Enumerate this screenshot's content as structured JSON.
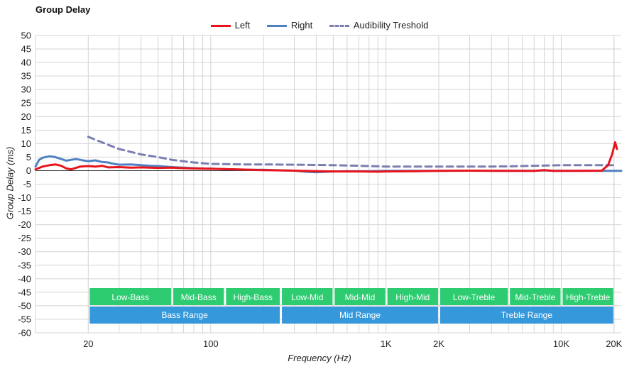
{
  "chart_data": {
    "type": "line",
    "title": "Group Delay",
    "xlabel": "Frequency (Hz)",
    "ylabel": "Group Delay (ms)",
    "xscale": "log",
    "xlim": [
      10,
      22000
    ],
    "ylim": [
      -60,
      50
    ],
    "y_ticks": [
      50,
      45,
      40,
      35,
      30,
      25,
      20,
      15,
      10,
      5,
      0,
      -5,
      -10,
      -15,
      -20,
      -25,
      -30,
      -35,
      -40,
      -45,
      -50,
      -55,
      -60
    ],
    "x_ticks": [
      {
        "value": 20,
        "label": "20"
      },
      {
        "value": 100,
        "label": "100"
      },
      {
        "value": 1000,
        "label": "1K"
      },
      {
        "value": 2000,
        "label": "2K"
      },
      {
        "value": 10000,
        "label": "10K"
      },
      {
        "value": 20000,
        "label": "20K"
      }
    ],
    "grid": true,
    "legend_position": "top-center",
    "series": [
      {
        "name": "Left",
        "color": "#e8141b",
        "dash": false,
        "points": [
          [
            10,
            0.5
          ],
          [
            11,
            1.5
          ],
          [
            12,
            2
          ],
          [
            13,
            2.3
          ],
          [
            14,
            1.8
          ],
          [
            15,
            0.8
          ],
          [
            16,
            0.5
          ],
          [
            18,
            1.5
          ],
          [
            20,
            1.7
          ],
          [
            22,
            1.5
          ],
          [
            24,
            1.8
          ],
          [
            26,
            1.2
          ],
          [
            30,
            1.3
          ],
          [
            35,
            1.1
          ],
          [
            40,
            1.2
          ],
          [
            50,
            1
          ],
          [
            60,
            1.1
          ],
          [
            70,
            0.9
          ],
          [
            80,
            0.8
          ],
          [
            100,
            0.7
          ],
          [
            150,
            0.4
          ],
          [
            200,
            0.2
          ],
          [
            300,
            0
          ],
          [
            400,
            -0.2
          ],
          [
            500,
            -0.3
          ],
          [
            700,
            -0.3
          ],
          [
            900,
            -0.4
          ],
          [
            1000,
            -0.3
          ],
          [
            1500,
            -0.2
          ],
          [
            2000,
            -0.1
          ],
          [
            3000,
            0
          ],
          [
            5000,
            -0.1
          ],
          [
            7000,
            -0.1
          ],
          [
            8000,
            0.2
          ],
          [
            9000,
            -0.1
          ],
          [
            12000,
            -0.1
          ],
          [
            17000,
            0
          ],
          [
            18500,
            2
          ],
          [
            19500,
            6
          ],
          [
            20300,
            10.5
          ],
          [
            20800,
            8
          ]
        ]
      },
      {
        "name": "Right",
        "color": "#4f81c2",
        "dash": false,
        "points": [
          [
            10,
            1.5
          ],
          [
            10.5,
            4
          ],
          [
            11,
            4.8
          ],
          [
            12,
            5.3
          ],
          [
            13,
            5
          ],
          [
            14,
            4.3
          ],
          [
            15,
            3.7
          ],
          [
            16,
            4
          ],
          [
            17,
            4.3
          ],
          [
            18,
            4
          ],
          [
            19,
            3.7
          ],
          [
            20,
            3.5
          ],
          [
            22,
            3.8
          ],
          [
            24,
            3.2
          ],
          [
            26,
            3
          ],
          [
            28,
            2.5
          ],
          [
            30,
            2.2
          ],
          [
            35,
            2.3
          ],
          [
            40,
            2
          ],
          [
            45,
            1.8
          ],
          [
            50,
            1.7
          ],
          [
            60,
            1.3
          ],
          [
            70,
            1.1
          ],
          [
            80,
            0.9
          ],
          [
            100,
            0.7
          ],
          [
            130,
            0.5
          ],
          [
            160,
            0.3
          ],
          [
            200,
            0.3
          ],
          [
            300,
            0
          ],
          [
            350,
            -0.4
          ],
          [
            400,
            -0.6
          ],
          [
            500,
            -0.3
          ],
          [
            600,
            -0.2
          ],
          [
            700,
            -0.2
          ],
          [
            800,
            -0.2
          ],
          [
            1000,
            -0.1
          ],
          [
            1500,
            -0.1
          ],
          [
            2000,
            -0.1
          ],
          [
            3000,
            0
          ],
          [
            4000,
            -0.1
          ],
          [
            5000,
            -0.1
          ],
          [
            7000,
            -0.1
          ],
          [
            8000,
            0.1
          ],
          [
            9000,
            -0.1
          ],
          [
            12000,
            -0.1
          ],
          [
            15000,
            -0.1
          ],
          [
            18000,
            -0.1
          ],
          [
            20000,
            -0.1
          ],
          [
            22000,
            -0.1
          ]
        ]
      },
      {
        "name": "Audibility Treshold",
        "color": "#7b7fb0",
        "dash": true,
        "points": [
          [
            20,
            12.5
          ],
          [
            25,
            10
          ],
          [
            30,
            8
          ],
          [
            40,
            6
          ],
          [
            50,
            5
          ],
          [
            60,
            4
          ],
          [
            80,
            3
          ],
          [
            100,
            2.5
          ],
          [
            150,
            2.3
          ],
          [
            200,
            2.3
          ],
          [
            300,
            2.2
          ],
          [
            500,
            2
          ],
          [
            700,
            1.8
          ],
          [
            1000,
            1.5
          ],
          [
            1500,
            1.5
          ],
          [
            2000,
            1.5
          ],
          [
            3000,
            1.5
          ],
          [
            4000,
            1.5
          ],
          [
            5000,
            1.6
          ],
          [
            7000,
            1.8
          ],
          [
            10000,
            2
          ],
          [
            15000,
            2
          ],
          [
            20000,
            2
          ]
        ]
      }
    ],
    "range_bands": {
      "sub": [
        {
          "label": "Low-Bass",
          "from": 20,
          "to": 60
        },
        {
          "label": "Mid-Bass",
          "from": 60,
          "to": 120
        },
        {
          "label": "High-Bass",
          "from": 120,
          "to": 250
        },
        {
          "label": "Low-Mid",
          "from": 250,
          "to": 500
        },
        {
          "label": "Mid-Mid",
          "from": 500,
          "to": 1000
        },
        {
          "label": "High-Mid",
          "from": 1000,
          "to": 2000
        },
        {
          "label": "Low-Treble",
          "from": 2000,
          "to": 5000
        },
        {
          "label": "Mid-Treble",
          "from": 5000,
          "to": 10000
        },
        {
          "label": "High-Treble",
          "from": 10000,
          "to": 20000
        }
      ],
      "main": [
        {
          "label": "Bass Range",
          "from": 20,
          "to": 250
        },
        {
          "label": "Mid Range",
          "from": 250,
          "to": 2000
        },
        {
          "label": "Treble Range",
          "from": 2000,
          "to": 20000
        }
      ],
      "sub_color": "#2ecc71",
      "main_color": "#3498db"
    }
  }
}
